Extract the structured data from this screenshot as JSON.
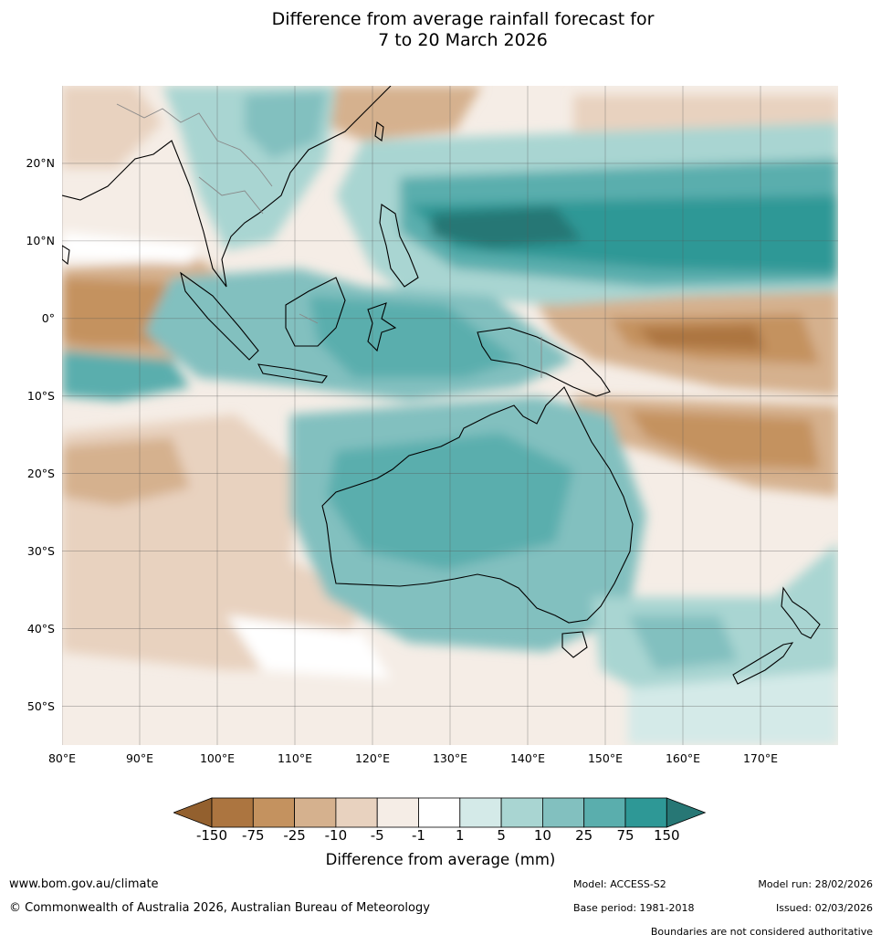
{
  "title": {
    "line1": "Difference from average rainfall forecast for",
    "line2": "7 to 20 March 2026"
  },
  "map": {
    "lon_range": [
      80,
      180
    ],
    "lat_range": [
      -55,
      30
    ],
    "lat_ticks": [
      {
        "value": 20,
        "label": "20°N"
      },
      {
        "value": 10,
        "label": "10°N"
      },
      {
        "value": 0,
        "label": "0°"
      },
      {
        "value": -10,
        "label": "10°S"
      },
      {
        "value": -20,
        "label": "20°S"
      },
      {
        "value": -30,
        "label": "30°S"
      },
      {
        "value": -40,
        "label": "40°S"
      },
      {
        "value": -50,
        "label": "50°S"
      }
    ],
    "lon_ticks": [
      {
        "value": 80,
        "label": "80°E"
      },
      {
        "value": 90,
        "label": "90°E"
      },
      {
        "value": 100,
        "label": "100°E"
      },
      {
        "value": 110,
        "label": "110°E"
      },
      {
        "value": 120,
        "label": "120°E"
      },
      {
        "value": 130,
        "label": "130°E"
      },
      {
        "value": 140,
        "label": "140°E"
      },
      {
        "value": 150,
        "label": "150°E"
      },
      {
        "value": 160,
        "label": "160°E"
      },
      {
        "value": 170,
        "label": "170°E"
      }
    ]
  },
  "colorbar": {
    "ticks": [
      "-150",
      "-75",
      "-25",
      "-10",
      "-5",
      "-1",
      "1",
      "5",
      "10",
      "25",
      "75",
      "150"
    ],
    "colors": [
      "#ac7540",
      "#c4925f",
      "#d5b18e",
      "#e8d2bf",
      "#f5ede6",
      "#ffffff",
      "#d4eae8",
      "#a9d5d2",
      "#82c0bf",
      "#5aaead",
      "#2e9896"
    ],
    "under_color": "#93602e",
    "over_color": "#277775",
    "label": "Difference from average (mm)"
  },
  "footer": {
    "website": "www.bom.gov.au/climate",
    "copyright": "© Commonwealth of Australia 2026, Australian Bureau of Meteorology",
    "model": "Model: ACCESS-S2",
    "base_period": "Base period: 1981-2018",
    "model_run": "Model run: 28/02/2026",
    "issued": "Issued: 02/03/2026",
    "boundaries": "Boundaries are not considered authoritative"
  }
}
